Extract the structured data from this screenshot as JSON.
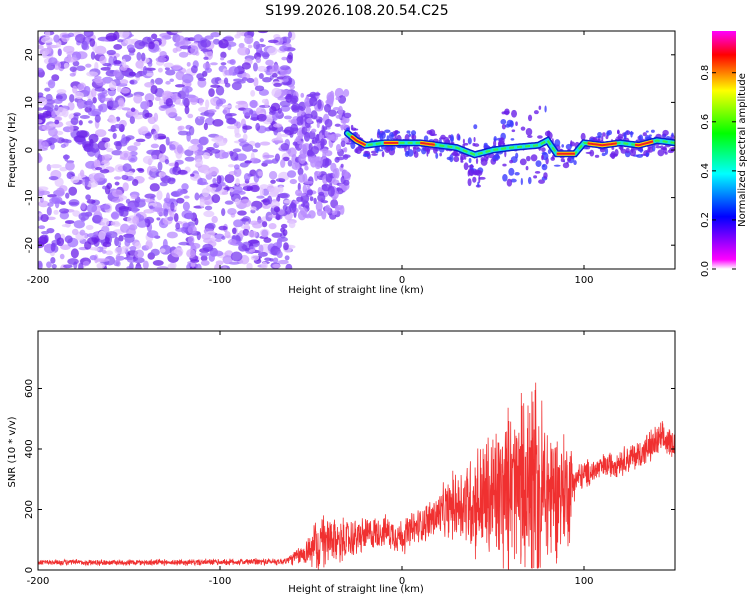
{
  "title": "S199.2026.108.20.54.C25",
  "chart_data": [
    {
      "type": "heatmap",
      "name": "spectrogram",
      "title": "S199.2026.108.20.54.C25",
      "xlabel": "Height of straight line (km)",
      "ylabel": "Frequency (Hz)",
      "xlim": [
        -200,
        150
      ],
      "ylim": [
        -25,
        25
      ],
      "xticks": [
        -200,
        -100,
        0,
        100
      ],
      "yticks": [
        -20,
        -10,
        0,
        10,
        20
      ],
      "colorbar": {
        "label": "Normalized spectral amplitude",
        "range": [
          0.0,
          0.97
        ],
        "ticks": [
          "0.0",
          "0.2",
          "0.4",
          "0.6",
          "0.8"
        ],
        "tick_values": [
          0.0,
          0.2,
          0.4,
          0.6,
          0.8
        ],
        "colormap": [
          "#ffffff",
          "#ff00ff",
          "#0000ff",
          "#00ffff",
          "#00ff00",
          "#ffff00",
          "#ff0000",
          "#ff00ff"
        ]
      },
      "noise_region_x": [
        -200,
        -60
      ],
      "ridge": [
        {
          "x": -30,
          "y": 3.5
        },
        {
          "x": -25,
          "y": 2.0
        },
        {
          "x": -20,
          "y": 1.0
        },
        {
          "x": -10,
          "y": 1.5
        },
        {
          "x": 0,
          "y": 1.5
        },
        {
          "x": 10,
          "y": 1.5
        },
        {
          "x": 20,
          "y": 1.0
        },
        {
          "x": 30,
          "y": 0.5
        },
        {
          "x": 40,
          "y": -1.0
        },
        {
          "x": 50,
          "y": 0.0
        },
        {
          "x": 60,
          "y": 0.5
        },
        {
          "x": 75,
          "y": 1.0
        },
        {
          "x": 80,
          "y": 2.0
        },
        {
          "x": 85,
          "y": -0.8
        },
        {
          "x": 95,
          "y": -0.8
        },
        {
          "x": 100,
          "y": 1.5
        },
        {
          "x": 110,
          "y": 1.0
        },
        {
          "x": 120,
          "y": 1.5
        },
        {
          "x": 130,
          "y": 1.0
        },
        {
          "x": 140,
          "y": 2.0
        },
        {
          "x": 150,
          "y": 1.5
        }
      ],
      "hot_segments": [
        [
          -28,
          -20
        ],
        [
          -10,
          -2
        ],
        [
          10,
          18
        ],
        [
          85,
          95
        ],
        [
          102,
          118
        ],
        [
          128,
          138
        ]
      ]
    },
    {
      "type": "line",
      "name": "snr",
      "xlabel": "Height of straight line (km)",
      "ylabel": "SNR (10 * v/v)",
      "xlim": [
        -200,
        150
      ],
      "ylim": [
        0,
        790
      ],
      "xticks": [
        -200,
        -100,
        0,
        100
      ],
      "yticks": [
        0,
        200,
        400,
        600
      ],
      "color": "#f03030",
      "envelope": [
        {
          "x": -200,
          "base": 25,
          "amp": 12
        },
        {
          "x": -120,
          "base": 25,
          "amp": 12
        },
        {
          "x": -65,
          "base": 28,
          "amp": 14
        },
        {
          "x": -55,
          "base": 50,
          "amp": 40
        },
        {
          "x": -45,
          "base": 90,
          "amp": 110
        },
        {
          "x": -30,
          "base": 100,
          "amp": 80
        },
        {
          "x": -10,
          "base": 130,
          "amp": 60
        },
        {
          "x": 0,
          "base": 110,
          "amp": 70
        },
        {
          "x": 10,
          "base": 150,
          "amp": 70
        },
        {
          "x": 20,
          "base": 180,
          "amp": 90
        },
        {
          "x": 30,
          "base": 220,
          "amp": 140
        },
        {
          "x": 45,
          "base": 230,
          "amp": 250
        },
        {
          "x": 60,
          "base": 260,
          "amp": 330
        },
        {
          "x": 72,
          "base": 260,
          "amp": 470
        },
        {
          "x": 85,
          "base": 260,
          "amp": 250
        },
        {
          "x": 92,
          "base": 270,
          "amp": 220
        },
        {
          "x": 95,
          "base": 300,
          "amp": 60
        },
        {
          "x": 110,
          "base": 340,
          "amp": 50
        },
        {
          "x": 130,
          "base": 380,
          "amp": 60
        },
        {
          "x": 142,
          "base": 430,
          "amp": 70
        },
        {
          "x": 150,
          "base": 420,
          "amp": 50
        }
      ]
    }
  ]
}
